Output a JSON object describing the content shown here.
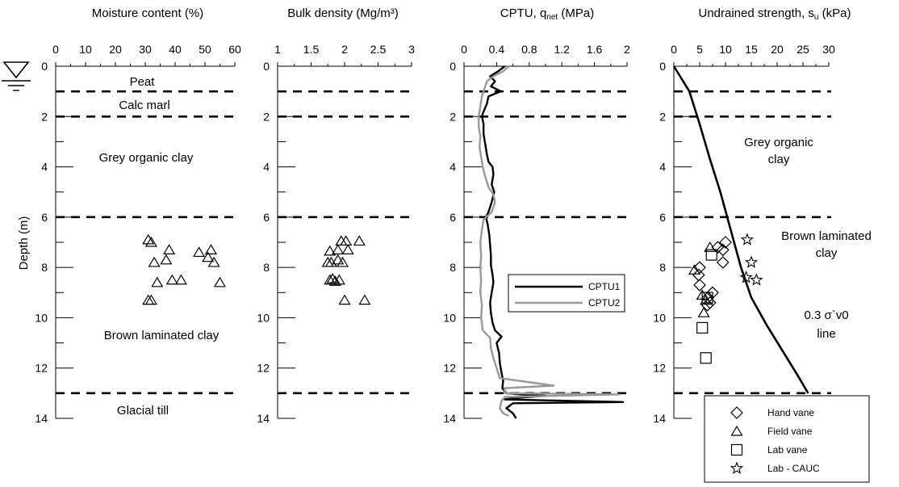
{
  "y_label": "Depth (m)",
  "depth_ticks": [
    "0",
    "2",
    "4",
    "6",
    "8",
    "10",
    "12",
    "14"
  ],
  "water_table_symbol": "∇",
  "colors": {
    "cptu1": "#000000",
    "cptu2": "#999999",
    "lines": "#000000"
  },
  "chart_data": [
    {
      "type": "scatter",
      "title": "Moisture content (%)",
      "xlim": [
        0,
        60
      ],
      "ylim": [
        0,
        14
      ],
      "x_ticks": [
        "0",
        "10",
        "20",
        "30",
        "40",
        "50",
        "60"
      ],
      "layer_boundaries": [
        1,
        2,
        6,
        13
      ],
      "layer_labels": [
        "Peat",
        "Calc marl",
        "Grey organic clay",
        "Brown laminated clay",
        "Glacial till"
      ],
      "series": [
        {
          "marker": "triangle",
          "points": [
            [
              31,
              6.9
            ],
            [
              32,
              7.0
            ],
            [
              38,
              7.3
            ],
            [
              33,
              7.8
            ],
            [
              37,
              7.7
            ],
            [
              48,
              7.4
            ],
            [
              51,
              7.6
            ],
            [
              52,
              7.3
            ],
            [
              53,
              7.8
            ],
            [
              39,
              8.5
            ],
            [
              42,
              8.5
            ],
            [
              34,
              8.6
            ],
            [
              55,
              8.6
            ],
            [
              31,
              9.3
            ],
            [
              32,
              9.3
            ]
          ]
        }
      ]
    },
    {
      "type": "scatter",
      "title": "Bulk density (Mg/m³)",
      "xlim": [
        1,
        3
      ],
      "ylim": [
        0,
        14
      ],
      "x_ticks": [
        "1",
        "1.5",
        "2",
        "2.5",
        "3"
      ],
      "series": [
        {
          "marker": "triangle",
          "points": [
            [
              1.95,
              6.95
            ],
            [
              2.02,
              6.95
            ],
            [
              2.22,
              6.95
            ],
            [
              1.78,
              7.35
            ],
            [
              1.9,
              7.3
            ],
            [
              2.05,
              7.3
            ],
            [
              1.75,
              7.8
            ],
            [
              1.8,
              7.8
            ],
            [
              1.9,
              7.7
            ],
            [
              1.97,
              7.8
            ],
            [
              1.78,
              8.5
            ],
            [
              1.82,
              8.45
            ],
            [
              1.86,
              8.55
            ],
            [
              1.92,
              8.5
            ],
            [
              2.0,
              9.3
            ],
            [
              2.3,
              9.3
            ]
          ]
        }
      ]
    },
    {
      "type": "line",
      "title": "CPTU, q",
      "title_sub": "net",
      "title_tail": " (MPa)",
      "xlim": [
        0,
        2
      ],
      "ylim": [
        0,
        14
      ],
      "x_ticks": [
        "0",
        "0.4",
        "0.8",
        "1.2",
        "1.6",
        "2"
      ],
      "series": [
        {
          "name": "CPTU1",
          "points": [
            [
              0.5,
              0
            ],
            [
              0.42,
              0.2
            ],
            [
              0.32,
              0.4
            ],
            [
              0.38,
              0.6
            ],
            [
              0.33,
              0.8
            ],
            [
              0.45,
              1.0
            ],
            [
              0.3,
              1.2
            ],
            [
              0.28,
              1.5
            ],
            [
              0.24,
              1.8
            ],
            [
              0.22,
              2.0
            ],
            [
              0.24,
              2.3
            ],
            [
              0.24,
              2.7
            ],
            [
              0.26,
              3.1
            ],
            [
              0.28,
              3.5
            ],
            [
              0.3,
              3.8
            ],
            [
              0.35,
              4.0
            ],
            [
              0.36,
              4.3
            ],
            [
              0.34,
              4.7
            ],
            [
              0.37,
              5.0
            ],
            [
              0.34,
              5.4
            ],
            [
              0.3,
              5.8
            ],
            [
              0.27,
              6.0
            ],
            [
              0.29,
              6.3
            ],
            [
              0.31,
              6.7
            ],
            [
              0.32,
              7.1
            ],
            [
              0.33,
              7.5
            ],
            [
              0.33,
              7.9
            ],
            [
              0.35,
              8.3
            ],
            [
              0.36,
              8.6
            ],
            [
              0.34,
              9.0
            ],
            [
              0.32,
              9.4
            ],
            [
              0.33,
              9.8
            ],
            [
              0.35,
              10.2
            ],
            [
              0.38,
              10.5
            ],
            [
              0.46,
              10.75
            ],
            [
              0.4,
              11.0
            ],
            [
              0.43,
              11.4
            ],
            [
              0.44,
              11.8
            ],
            [
              0.46,
              12.2
            ],
            [
              0.48,
              12.5
            ],
            [
              0.47,
              12.8
            ],
            [
              0.52,
              13.0
            ],
            [
              0.7,
              13.05
            ],
            [
              1.0,
              13.1
            ],
            [
              0.6,
              13.2
            ],
            [
              0.5,
              13.25
            ],
            [
              1.95,
              13.35
            ],
            [
              0.6,
              13.4
            ],
            [
              0.52,
              13.6
            ],
            [
              0.6,
              13.8
            ],
            [
              0.64,
              14.0
            ]
          ]
        },
        {
          "name": "CPTU2",
          "points": [
            [
              0.55,
              0
            ],
            [
              0.48,
              0.2
            ],
            [
              0.36,
              0.4
            ],
            [
              0.28,
              0.6
            ],
            [
              0.25,
              0.9
            ],
            [
              0.22,
              1.2
            ],
            [
              0.2,
              1.6
            ],
            [
              0.18,
              2.0
            ],
            [
              0.18,
              2.4
            ],
            [
              0.2,
              2.8
            ],
            [
              0.19,
              3.2
            ],
            [
              0.21,
              3.6
            ],
            [
              0.23,
              4.0
            ],
            [
              0.26,
              4.4
            ],
            [
              0.3,
              4.8
            ],
            [
              0.36,
              5.1
            ],
            [
              0.38,
              5.4
            ],
            [
              0.34,
              5.8
            ],
            [
              0.24,
              6.1
            ],
            [
              0.22,
              6.5
            ],
            [
              0.2,
              7.0
            ],
            [
              0.21,
              7.5
            ],
            [
              0.2,
              8.0
            ],
            [
              0.21,
              8.5
            ],
            [
              0.2,
              9.0
            ],
            [
              0.22,
              9.5
            ],
            [
              0.21,
              10.0
            ],
            [
              0.23,
              10.5
            ],
            [
              0.32,
              10.8
            ],
            [
              0.33,
              11.2
            ],
            [
              0.36,
              11.6
            ],
            [
              0.4,
              12.0
            ],
            [
              0.44,
              12.4
            ],
            [
              1.1,
              12.7
            ],
            [
              0.5,
              12.8
            ],
            [
              0.5,
              13.0
            ],
            [
              1.9,
              13.05
            ],
            [
              0.5,
              13.15
            ],
            [
              0.46,
              13.3
            ],
            [
              0.44,
              13.6
            ],
            [
              0.48,
              13.8
            ],
            [
              0.55,
              13.9
            ]
          ]
        }
      ]
    },
    {
      "type": "scatter",
      "title": "Undrained strength, s",
      "title_sub": "u",
      "title_tail": " (kPa)",
      "xlim": [
        0,
        30
      ],
      "ylim": [
        0,
        14
      ],
      "x_ticks": [
        "0",
        "5",
        "10",
        "15",
        "20",
        "25",
        "30"
      ],
      "layer_labels": [
        "Grey organic clay",
        "Brown laminated clay"
      ],
      "line_label": "0.3 σ`v0 line",
      "reference_line": [
        [
          0,
          0
        ],
        [
          3,
          1
        ],
        [
          5,
          2.3
        ],
        [
          7,
          3.7
        ],
        [
          9,
          5
        ],
        [
          11,
          6.5
        ],
        [
          13,
          8
        ],
        [
          15,
          9.2
        ],
        [
          18,
          10.3
        ],
        [
          21,
          11.3
        ],
        [
          24,
          12.3
        ],
        [
          26,
          13
        ]
      ],
      "series": [
        {
          "name": "Hand vane",
          "marker": "diamond",
          "points": [
            [
              8.5,
              7.2
            ],
            [
              9.5,
              7.3
            ],
            [
              10,
              7.0
            ],
            [
              9.5,
              7.8
            ],
            [
              5,
              8.0
            ],
            [
              4.8,
              8.3
            ],
            [
              5,
              8.7
            ],
            [
              6.6,
              9.2
            ],
            [
              7.5,
              9.0
            ],
            [
              6.5,
              9.5
            ],
            [
              7,
              9.4
            ]
          ]
        },
        {
          "name": "Field vane",
          "marker": "triangle",
          "points": [
            [
              7,
              7.2
            ],
            [
              4,
              8.1
            ],
            [
              5.5,
              9.1
            ],
            [
              5.8,
              9.8
            ],
            [
              6.2,
              9.3
            ]
          ]
        },
        {
          "name": "Lab vane",
          "marker": "square",
          "points": [
            [
              7.3,
              7.5
            ],
            [
              5.5,
              10.4
            ],
            [
              6.2,
              11.6
            ],
            [
              6.5,
              9.2
            ]
          ]
        },
        {
          "name": "Lab - CAUC",
          "marker": "star",
          "points": [
            [
              14.2,
              6.9
            ],
            [
              15,
              7.8
            ],
            [
              16,
              8.5
            ],
            [
              14,
              8.4
            ]
          ]
        }
      ],
      "legend": {
        "position": "bottom-right",
        "entries": [
          "Hand vane",
          "Field vane",
          "Lab vane",
          "Lab - CAUC"
        ]
      }
    }
  ]
}
